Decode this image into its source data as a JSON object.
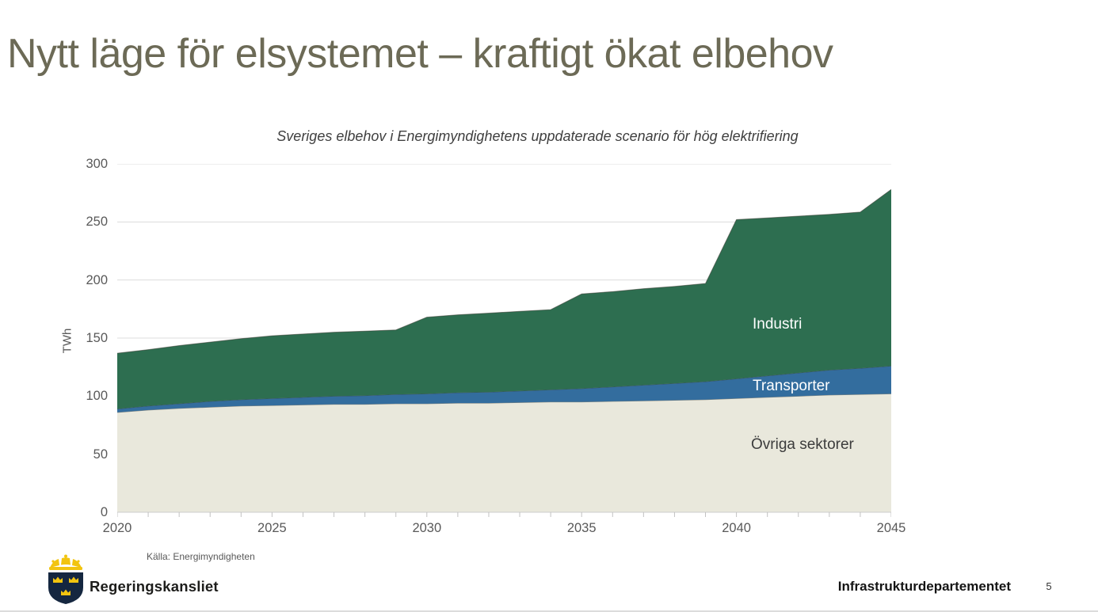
{
  "slide": {
    "title": "Nytt läge för elsystemet – kraftigt ökat elbehov",
    "page_number": "5"
  },
  "footer": {
    "org": "Regeringskansliet",
    "department": "Infrastrukturdepartementet",
    "logo": "swedish-coat-of-arms"
  },
  "chart_data": {
    "type": "area",
    "stacked": true,
    "title": "Sveriges elbehov i Energimyndighetens uppdaterade scenario för hög elektrifiering",
    "source": "Källa: Energimyndigheten",
    "ylabel": "TWh",
    "ylim": [
      0,
      300
    ],
    "yticks": [
      0,
      50,
      100,
      150,
      200,
      250,
      300
    ],
    "xticks": [
      2020,
      2025,
      2030,
      2035,
      2040,
      2045
    ],
    "grid": "horizontal",
    "legend": "inline-labels",
    "x": [
      2020,
      2021,
      2022,
      2023,
      2024,
      2025,
      2026,
      2027,
      2028,
      2029,
      2030,
      2031,
      2032,
      2033,
      2034,
      2035,
      2036,
      2037,
      2038,
      2039,
      2040,
      2041,
      2042,
      2043,
      2044,
      2045
    ],
    "series": [
      {
        "name": "Övriga sektorer",
        "color": "#e9e8dc",
        "label_color": "#3c3c3c",
        "values": [
          86,
          88,
          89.5,
          90.5,
          91.5,
          92,
          92.5,
          93,
          93,
          93.5,
          93.5,
          94,
          94,
          94.5,
          95,
          95,
          95.5,
          96,
          96.5,
          97,
          98,
          99,
          100,
          101,
          101.5,
          102
        ]
      },
      {
        "name": "Transporter",
        "color": "#336d9e",
        "label_color": "#ffffff",
        "values": [
          3,
          3.5,
          4,
          5,
          5.5,
          6,
          6.5,
          7,
          7.5,
          8,
          8.5,
          9,
          9.5,
          10,
          10.5,
          11.5,
          12.5,
          13.5,
          14.5,
          15.5,
          17,
          18.5,
          20,
          21.5,
          22.5,
          24
        ]
      },
      {
        "name": "Industri",
        "color": "#2d6e50",
        "label_color": "#ffffff",
        "values": [
          48,
          48.5,
          50,
          51,
          52.5,
          54,
          54.5,
          55,
          55.5,
          55.5,
          66,
          67,
          68,
          68.5,
          69,
          81.5,
          82,
          83,
          83.5,
          84.5,
          137,
          136,
          135,
          134,
          134.5,
          152
        ]
      }
    ],
    "totals": [
      137,
      140,
      143.5,
      146.5,
      149.5,
      152,
      153.5,
      155,
      156,
      157,
      168,
      170,
      171.5,
      173,
      174.5,
      188,
      190,
      192.5,
      194.5,
      197,
      252,
      253.5,
      255,
      256.5,
      258.5,
      278
    ]
  },
  "colors": {
    "title_text": "#6c6a56",
    "axis_text": "#595959",
    "gridline": "#dcdcdc",
    "industri_green": "#2d6e50",
    "transporter_blue": "#336d9e",
    "ovriga_beige": "#e9e8dc",
    "logo_gold": "#f2c40f",
    "logo_navy": "#152740"
  }
}
